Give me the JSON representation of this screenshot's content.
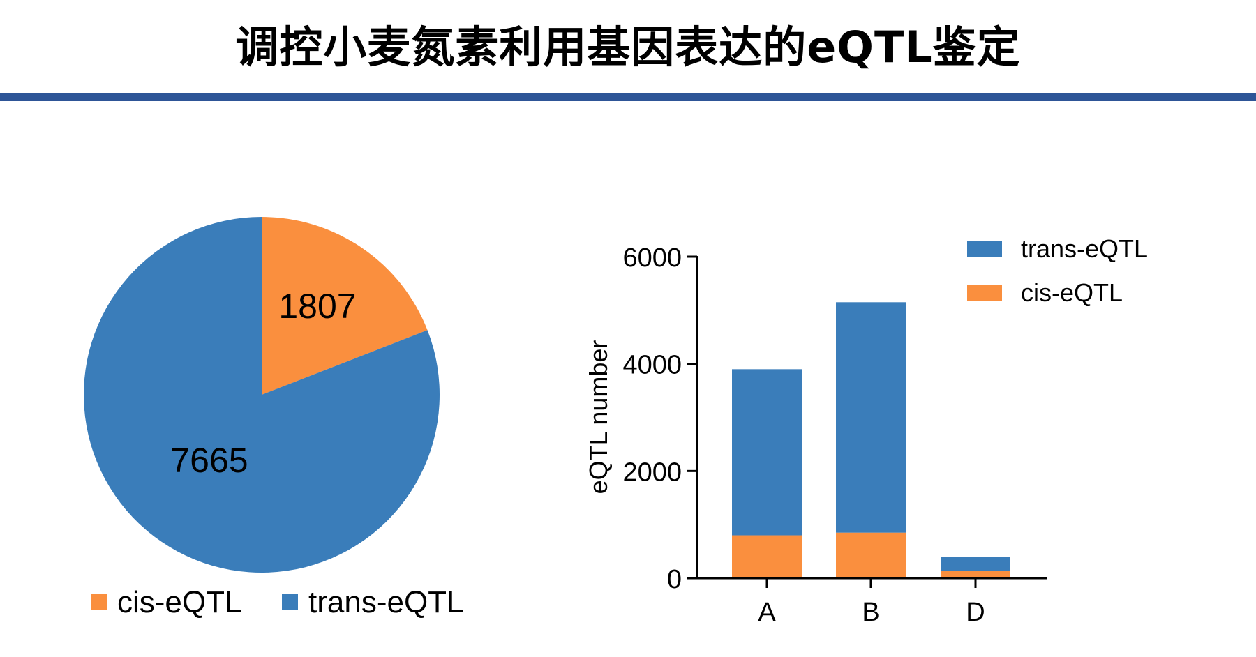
{
  "title": "调控小麦氮素利用基因表达的eQTL鉴定",
  "colors": {
    "title_rule": "#2e5597",
    "trans": "#3a7dba",
    "cis": "#fa8f3e",
    "axis": "#000000",
    "text": "#000000"
  },
  "chart_data": [
    {
      "type": "pie",
      "title": "",
      "labels": [
        "cis-eQTL",
        "trans-eQTL"
      ],
      "values": [
        1807,
        7665
      ],
      "data_labels": [
        "1807",
        "7665"
      ],
      "legend": [
        "cis-eQTL",
        "trans-eQTL"
      ],
      "legend_position": "bottom"
    },
    {
      "type": "bar",
      "stacked": true,
      "title": "",
      "categories": [
        "A",
        "B",
        "D"
      ],
      "series": [
        {
          "name": "cis-eQTL",
          "values": [
            800,
            850,
            130
          ]
        },
        {
          "name": "trans-eQTL",
          "values": [
            3100,
            4300,
            270
          ]
        }
      ],
      "xlabel": "",
      "ylabel": "eQTL number",
      "ylim": [
        0,
        6000
      ],
      "yticks": [
        "0",
        "2000",
        "4000",
        "6000"
      ],
      "grid": false,
      "legend": [
        "trans-eQTL",
        "cis-eQTL"
      ],
      "legend_position": "top-right"
    }
  ]
}
